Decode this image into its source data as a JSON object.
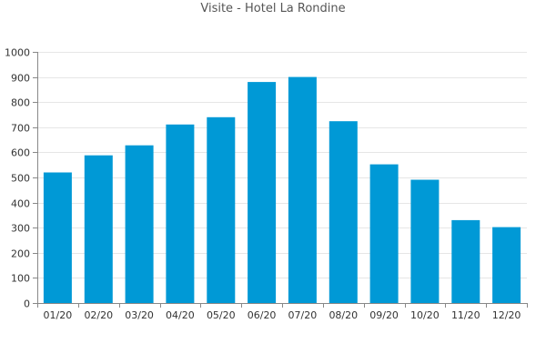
{
  "chart_data": {
    "type": "bar",
    "title": "Visite - Hotel La Rondine",
    "xlabel": "",
    "ylabel": "",
    "categories": [
      "01/20",
      "02/20",
      "03/20",
      "04/20",
      "05/20",
      "06/20",
      "07/20",
      "08/20",
      "09/20",
      "10/20",
      "11/20",
      "12/20"
    ],
    "values": [
      520,
      588,
      628,
      711,
      740,
      880,
      900,
      724,
      552,
      491,
      330,
      302
    ],
    "ylim": [
      0,
      1000
    ],
    "yticks": [
      0,
      100,
      200,
      300,
      400,
      500,
      600,
      700,
      800,
      900,
      1000
    ],
    "grid": true,
    "legend": "none",
    "colors": {
      "bar": "#0099d6",
      "grid": "#e6e6e6",
      "axis": "#888888"
    }
  }
}
